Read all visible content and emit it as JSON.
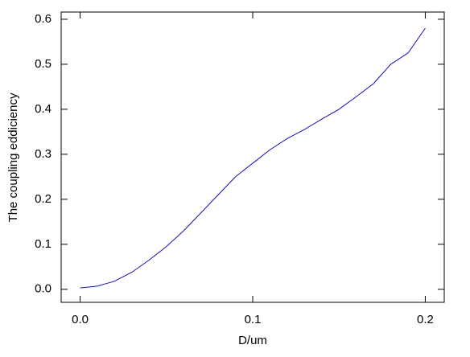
{
  "chart_data": {
    "type": "line",
    "xlabel": "D/um",
    "ylabel": "The coupling eddiciency",
    "x": [
      0,
      0.01,
      0.02,
      0.03,
      0.04,
      0.05,
      0.06,
      0.07,
      0.08,
      0.09,
      0.1,
      0.11,
      0.12,
      0.13,
      0.14,
      0.15,
      0.16,
      0.17,
      0.18,
      0.19,
      0.2
    ],
    "series": [
      {
        "color": "#1010c0",
        "values": [
          0.003,
          0.007,
          0.018,
          0.038,
          0.065,
          0.095,
          0.13,
          0.17,
          0.21,
          0.25,
          0.28,
          0.31,
          0.335,
          0.355,
          0.378,
          0.4,
          0.428,
          0.457,
          0.5,
          0.525,
          0.58
        ]
      }
    ],
    "xlim": [
      -0.011,
      0.211
    ],
    "ylim": [
      -0.029,
      0.616
    ],
    "xticks": [
      {
        "value": 0,
        "label": "0.0"
      },
      0.1,
      0.2
    ],
    "yticks": [
      {
        "value": 0,
        "label": "0.0"
      },
      0.1,
      0.2,
      0.3,
      0.4,
      0.5,
      0.6
    ]
  }
}
